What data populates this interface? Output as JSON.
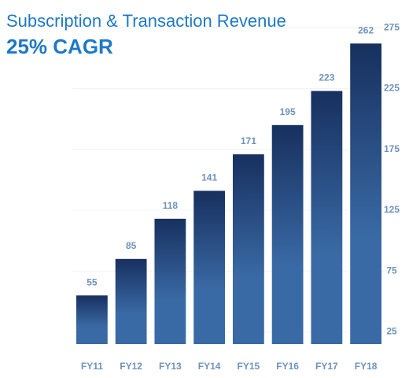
{
  "chart_data": {
    "type": "bar",
    "title": "Subscription & Transaction Revenue",
    "subtitle": "25% CAGR",
    "categories": [
      "FY11",
      "FY12",
      "FY13",
      "FY14",
      "FY15",
      "FY16",
      "FY17",
      "FY18"
    ],
    "values": [
      55,
      85,
      118,
      141,
      171,
      195,
      223,
      262
    ],
    "color": [
      "#17305f",
      "#3a6aa5"
    ],
    "ylim": [
      15,
      290
    ],
    "yticks": [
      25,
      75,
      125,
      175,
      225,
      275
    ],
    "grid": true,
    "y_axis_side": "right"
  }
}
